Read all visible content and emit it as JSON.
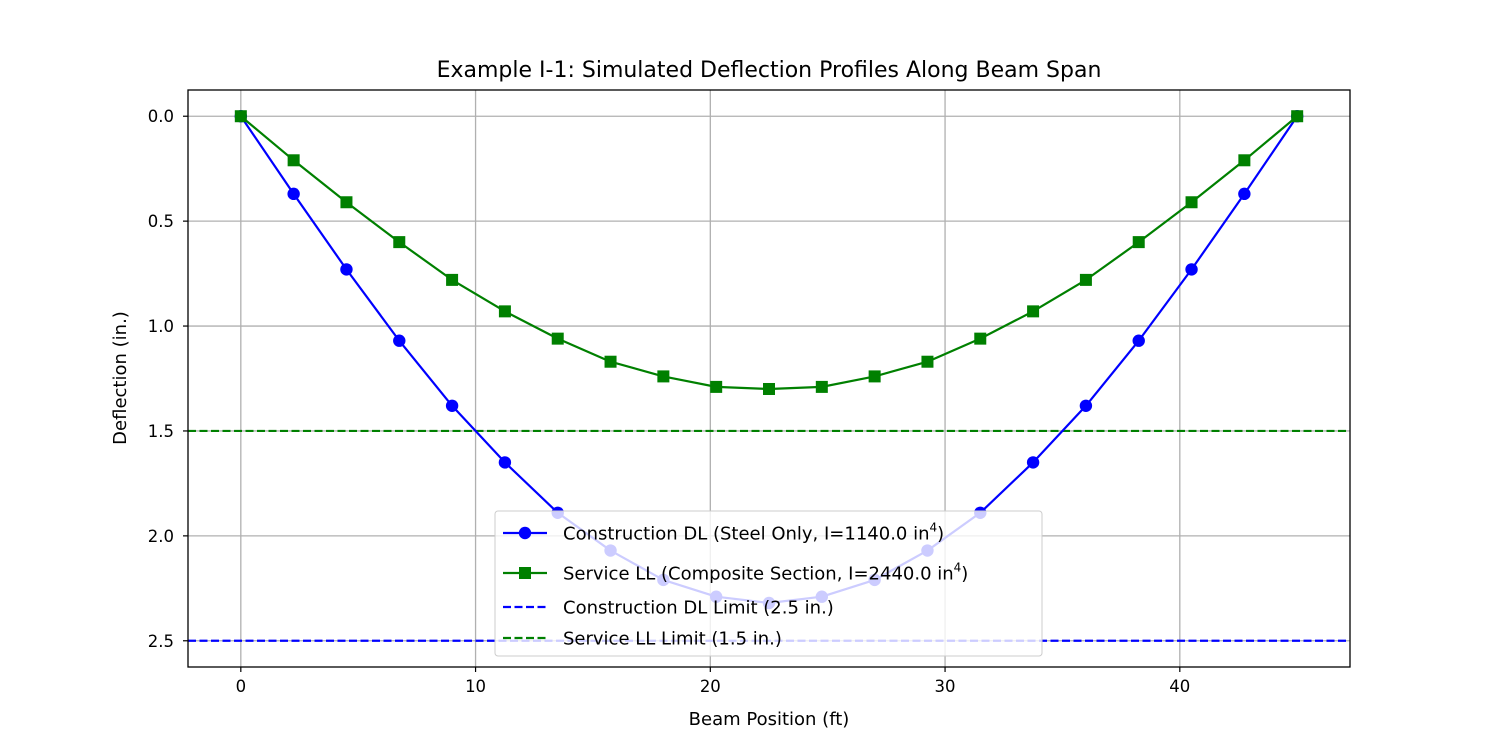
{
  "chart_data": {
    "type": "line",
    "title": "Example I-1: Simulated Deflection Profiles Along Beam Span",
    "xlabel": "Beam Position (ft)",
    "ylabel": "Deflection (in.)",
    "xlim": [
      -2.25,
      47.25
    ],
    "ylim": [
      2.625,
      -0.125
    ],
    "y_inverted": true,
    "grid": true,
    "legend_position": "lower center",
    "x_ticks": [
      0,
      10,
      20,
      30,
      40
    ],
    "x_tick_labels": [
      "0",
      "10",
      "20",
      "30",
      "40"
    ],
    "y_ticks": [
      0.0,
      0.5,
      1.0,
      1.5,
      2.0,
      2.5
    ],
    "y_tick_labels": [
      "0.0",
      "0.5",
      "1.0",
      "1.5",
      "2.0",
      "2.5"
    ],
    "x": [
      0,
      2.25,
      4.5,
      6.75,
      9,
      11.25,
      13.5,
      15.75,
      18,
      20.25,
      22.5,
      24.75,
      27,
      29.25,
      31.5,
      33.75,
      36,
      38.25,
      40.5,
      42.75,
      45
    ],
    "series": [
      {
        "name": "Construction DL (Steel Only, I=1140.0 in",
        "name_sup": "4",
        "name_suffix": ")",
        "color": "#0000ff",
        "marker": "circle",
        "linestyle": "solid",
        "values": [
          0.0,
          0.37,
          0.73,
          1.07,
          1.38,
          1.65,
          1.89,
          2.07,
          2.21,
          2.29,
          2.32,
          2.29,
          2.21,
          2.07,
          1.89,
          1.65,
          1.38,
          1.07,
          0.73,
          0.37,
          0.0
        ]
      },
      {
        "name": "Service LL (Composite Section, I=2440.0 in",
        "name_sup": "4",
        "name_suffix": ")",
        "color": "#008000",
        "marker": "square",
        "linestyle": "solid",
        "values": [
          0.0,
          0.21,
          0.41,
          0.6,
          0.78,
          0.93,
          1.06,
          1.17,
          1.24,
          1.29,
          1.3,
          1.29,
          1.24,
          1.17,
          1.06,
          0.93,
          0.78,
          0.6,
          0.41,
          0.21,
          0.0
        ]
      }
    ],
    "reference_lines": [
      {
        "name": "Construction DL Limit (2.5 in.)",
        "y": 2.5,
        "color": "#0000ff",
        "linestyle": "dashed"
      },
      {
        "name": "Service LL Limit (1.5 in.)",
        "y": 1.5,
        "color": "#008000",
        "linestyle": "dashed"
      }
    ]
  }
}
